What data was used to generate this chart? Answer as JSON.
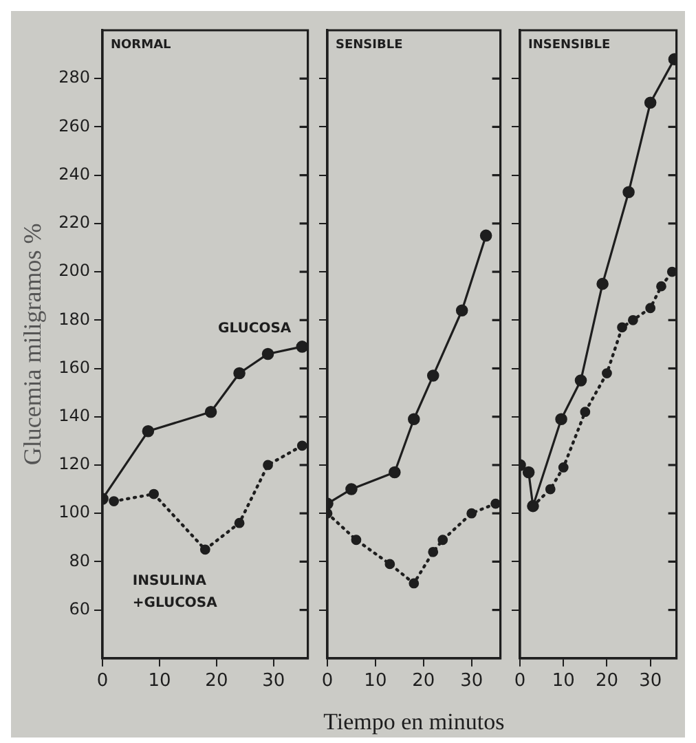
{
  "chart_data": [
    {
      "type": "line",
      "title": "NORMAL",
      "ylabel": "Glucemia miligramos %",
      "xlim": [
        0,
        36
      ],
      "xticks": [
        0,
        10,
        20,
        30
      ],
      "ylim": [
        40,
        300
      ],
      "yticks": [
        60,
        80,
        100,
        120,
        140,
        160,
        180,
        200,
        220,
        240,
        260,
        280
      ],
      "grid": false,
      "marker": "circle",
      "series": [
        {
          "name": "GLUCOSA",
          "color": "#1e1e1e",
          "line_style": "solid",
          "x": [
            0,
            8,
            19,
            24,
            29,
            35
          ],
          "values": [
            106,
            134,
            142,
            158,
            166,
            169
          ]
        },
        {
          "name": "INSULINA +GLUCOSA",
          "color": "#1e1e1e",
          "line_style": "dotted",
          "x": [
            2,
            9,
            18,
            24,
            29,
            35
          ],
          "values": [
            105,
            108,
            85,
            96,
            120,
            128
          ]
        }
      ]
    },
    {
      "type": "line",
      "title": "SENSIBLE",
      "xlabel": "Tiempo en minutos",
      "tick_labels": "x",
      "xlim": [
        0,
        36
      ],
      "xticks": [
        0,
        10,
        20,
        30
      ],
      "ylim": [
        40,
        300
      ],
      "yticks": [
        60,
        80,
        100,
        120,
        140,
        160,
        180,
        200,
        220,
        240,
        260,
        280
      ],
      "grid": false,
      "marker": "circle",
      "series": [
        {
          "color": "#1e1e1e",
          "line_style": "solid",
          "x": [
            0,
            5,
            14,
            18,
            22,
            28,
            33
          ],
          "values": [
            104,
            110,
            117,
            139,
            157,
            184,
            215
          ]
        },
        {
          "color": "#1e1e1e",
          "line_style": "dotted",
          "x": [
            0,
            6,
            13,
            18,
            22,
            24,
            30,
            35
          ],
          "values": [
            100,
            89,
            79,
            71,
            84,
            89,
            100,
            104
          ]
        }
      ]
    },
    {
      "type": "line",
      "title": "INSENSIBLE",
      "tick_labels": "x",
      "xlim": [
        0,
        36
      ],
      "xticks": [
        0,
        10,
        20,
        30
      ],
      "ylim": [
        40,
        300
      ],
      "yticks": [
        60,
        80,
        100,
        120,
        140,
        160,
        180,
        200,
        220,
        240,
        260,
        280
      ],
      "grid": false,
      "marker": "circle",
      "series": [
        {
          "color": "#1e1e1e",
          "line_style": "solid",
          "x": [
            0,
            2,
            3,
            9.5,
            14,
            19,
            25,
            30,
            35.5
          ],
          "values": [
            120,
            117,
            103,
            139,
            155,
            195,
            233,
            270,
            288
          ]
        },
        {
          "color": "#1e1e1e",
          "line_style": "dotted",
          "x": [
            3,
            7,
            10,
            15,
            20,
            23.5,
            26,
            30,
            32.5,
            35
          ],
          "values": [
            103,
            110,
            119,
            142,
            158,
            177,
            180,
            185,
            194,
            200
          ]
        }
      ]
    }
  ]
}
